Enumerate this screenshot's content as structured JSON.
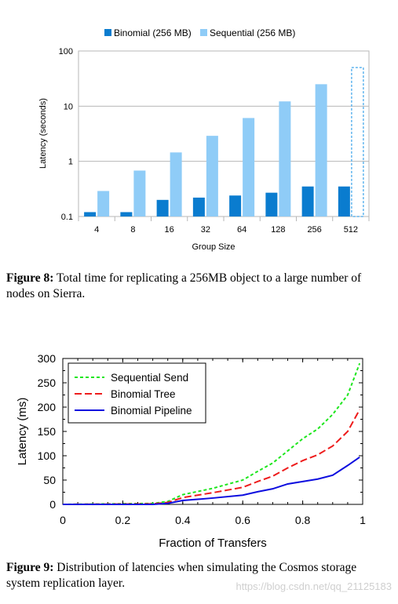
{
  "figure8": {
    "caption_label": "Figure 8:",
    "caption_text": "Total time for replicating a 256MB object to a large number of nodes on Sierra.",
    "chart_data": {
      "type": "bar",
      "title": "",
      "xlabel": "Group Size",
      "ylabel": "Latency (seconds)",
      "yscale": "log",
      "ylim": [
        0.1,
        100
      ],
      "yticks": [
        "0.1",
        "1",
        "10",
        "100"
      ],
      "categories": [
        "4",
        "8",
        "16",
        "32",
        "64",
        "128",
        "256",
        "512"
      ],
      "legend_position": "top",
      "series": [
        {
          "name": "Binomial (256 MB)",
          "color": "#0a7ccf",
          "values": [
            0.12,
            0.12,
            0.2,
            0.22,
            0.24,
            0.27,
            0.35,
            0.35
          ]
        },
        {
          "name": "Sequential (256 MB)",
          "color": "#8fccf7",
          "values": [
            0.29,
            0.68,
            1.45,
            2.9,
            6.1,
            12.2,
            25,
            50
          ],
          "estimated_last": true
        }
      ]
    }
  },
  "figure9": {
    "caption_label": "Figure 9:",
    "caption_text": "Distribution of latencies when simulating the Cosmos storage system replication layer.",
    "chart_data": {
      "type": "line",
      "title": "",
      "xlabel": "Fraction of Transfers",
      "ylabel": "Latency (ms)",
      "xlim": [
        0,
        1
      ],
      "ylim": [
        0,
        300
      ],
      "xticks": [
        "0",
        "0.2",
        "0.4",
        "0.6",
        "0.8",
        "1"
      ],
      "yticks": [
        "0",
        "50",
        "100",
        "150",
        "200",
        "250",
        "300"
      ],
      "legend_position": "top-left",
      "x": [
        0,
        0.3,
        0.35,
        0.4,
        0.5,
        0.6,
        0.65,
        0.7,
        0.75,
        0.8,
        0.85,
        0.9,
        0.95,
        0.99
      ],
      "series": [
        {
          "name": "Sequential Send",
          "color": "#1ee61e",
          "dash": "4,3",
          "values": [
            0,
            2,
            6,
            20,
            33,
            50,
            68,
            85,
            110,
            135,
            155,
            185,
            225,
            290
          ]
        },
        {
          "name": "Binomial Tree",
          "color": "#ee1c1c",
          "dash": "9,4",
          "values": [
            0,
            1,
            4,
            14,
            24,
            35,
            47,
            58,
            75,
            90,
            102,
            120,
            150,
            195
          ]
        },
        {
          "name": "Binomial Pipeline",
          "color": "#0d0ddf",
          "dash": "",
          "values": [
            0,
            0,
            2,
            8,
            13,
            19,
            26,
            32,
            42,
            47,
            52,
            60,
            80,
            97
          ]
        }
      ]
    }
  },
  "watermark": "https://blog.csdn.net/qq_21125183"
}
